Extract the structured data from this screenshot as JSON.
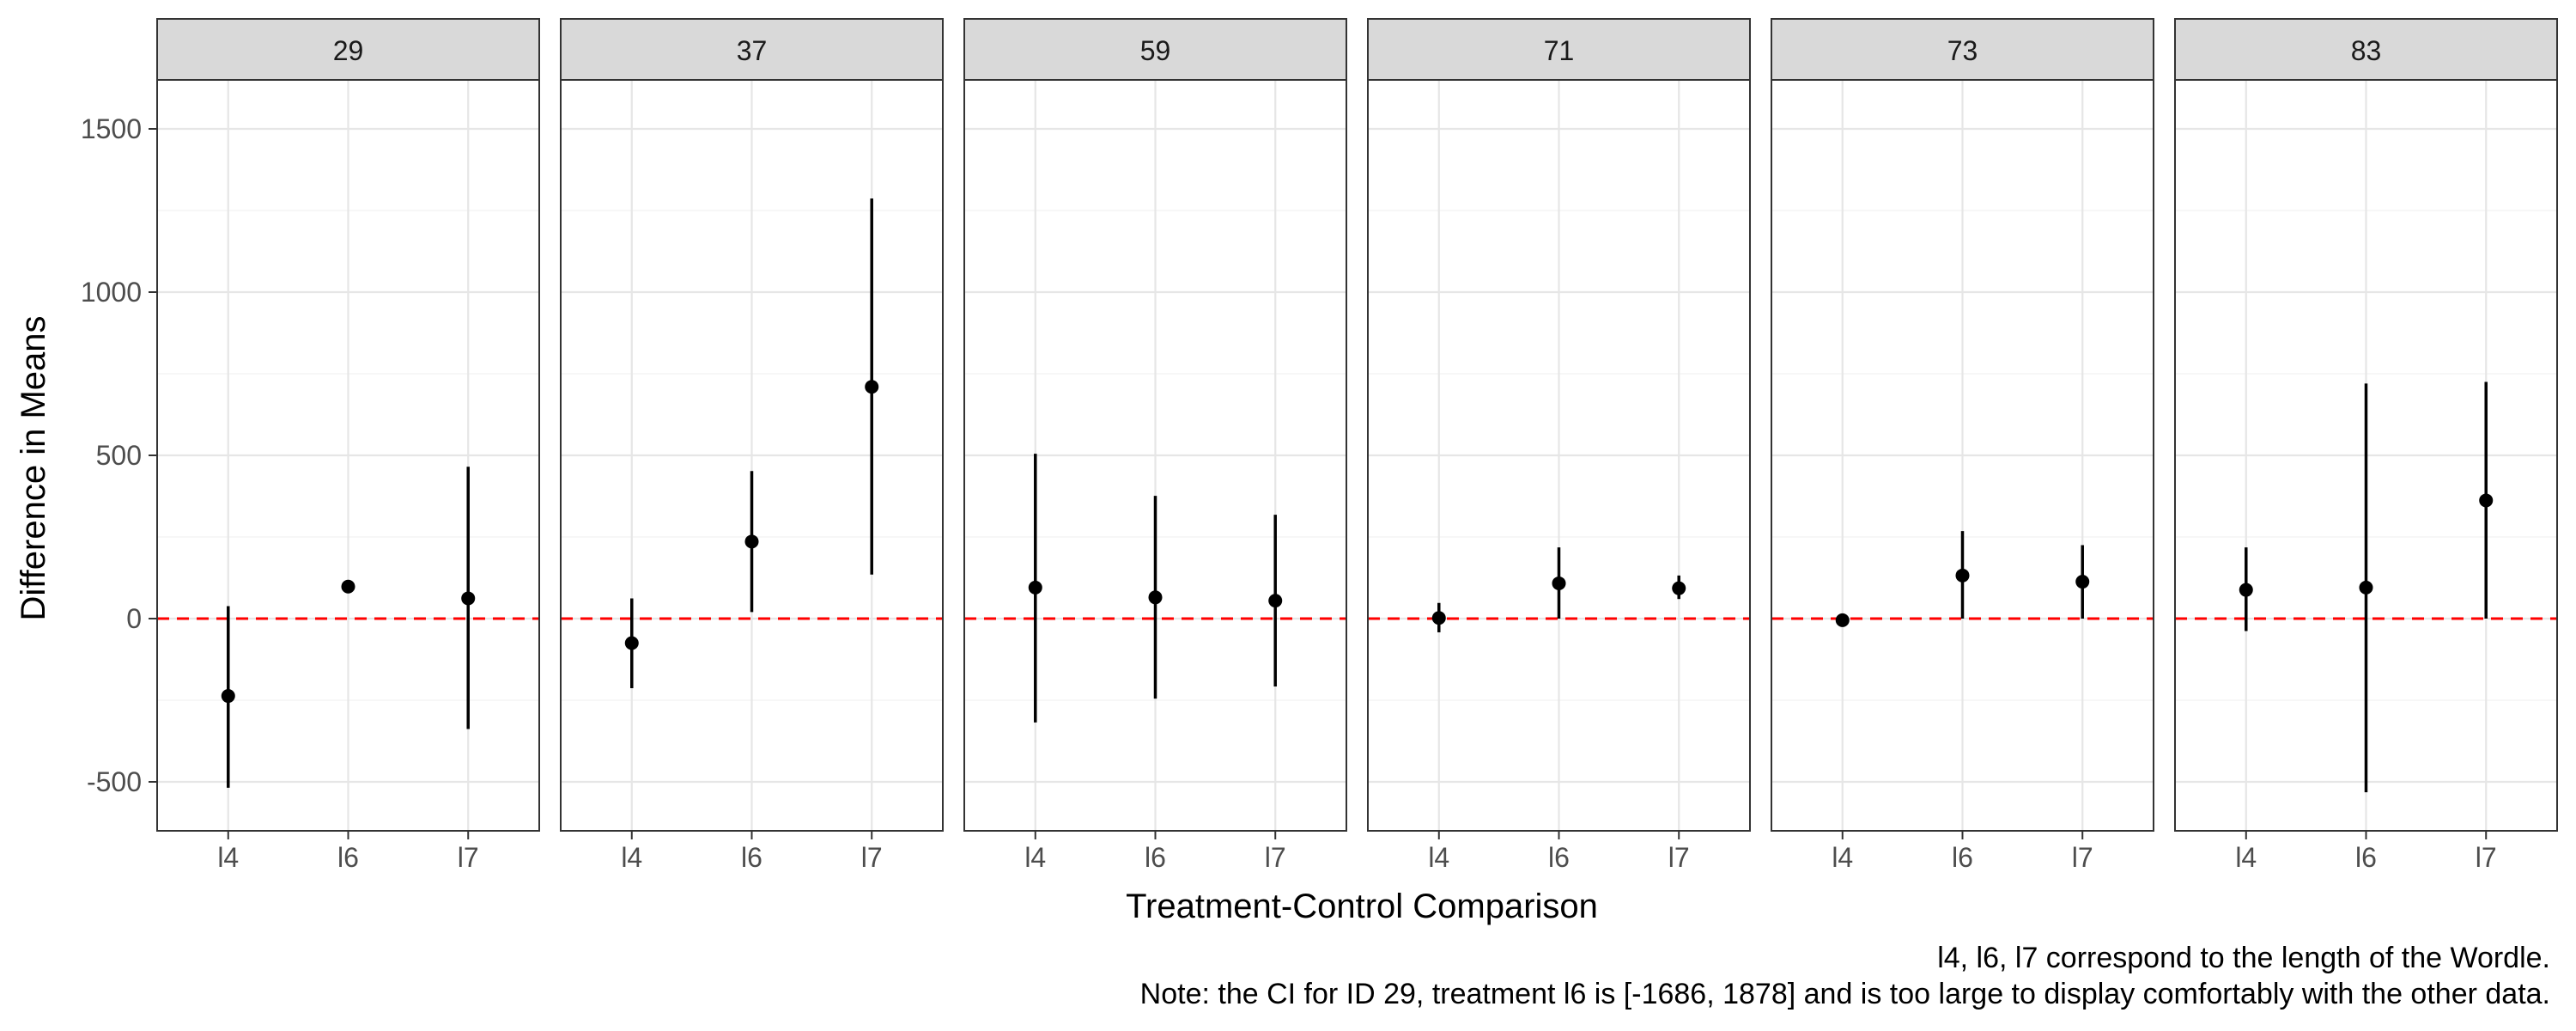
{
  "chart_data": {
    "type": "scatter",
    "facet_by": "ID",
    "facets": [
      "29",
      "37",
      "59",
      "71",
      "73",
      "83"
    ],
    "categories": [
      "l4",
      "l6",
      "l7"
    ],
    "xlabel": "Treatment-Control Comparison",
    "ylabel": "Difference in Means",
    "ylim": [
      -650,
      1650
    ],
    "yticks": [
      -500,
      0,
      500,
      1000,
      1500
    ],
    "grid": true,
    "reference_line": {
      "y": 0,
      "color": "#ff0000",
      "style": "dashed"
    },
    "point_color": "#000000",
    "panels": [
      {
        "id": "29",
        "points": [
          {
            "x": "l4",
            "y": -237,
            "lo": -518,
            "hi": 38
          },
          {
            "x": "l6",
            "y": 98,
            "lo": 98,
            "hi": 98
          },
          {
            "x": "l7",
            "y": 62,
            "lo": -338,
            "hi": 465
          }
        ]
      },
      {
        "id": "37",
        "points": [
          {
            "x": "l4",
            "y": -75,
            "lo": -213,
            "hi": 62
          },
          {
            "x": "l6",
            "y": 236,
            "lo": 20,
            "hi": 452
          },
          {
            "x": "l7",
            "y": 710,
            "lo": 135,
            "hi": 1287
          }
        ]
      },
      {
        "id": "59",
        "points": [
          {
            "x": "l4",
            "y": 95,
            "lo": -318,
            "hi": 505
          },
          {
            "x": "l6",
            "y": 65,
            "lo": -245,
            "hi": 376
          },
          {
            "x": "l7",
            "y": 55,
            "lo": -208,
            "hi": 318
          }
        ]
      },
      {
        "id": "71",
        "points": [
          {
            "x": "l4",
            "y": 2,
            "lo": -42,
            "hi": 48
          },
          {
            "x": "l6",
            "y": 108,
            "lo": 0,
            "hi": 218
          },
          {
            "x": "l7",
            "y": 93,
            "lo": 60,
            "hi": 132
          }
        ]
      },
      {
        "id": "73",
        "points": [
          {
            "x": "l4",
            "y": -5,
            "lo": -18,
            "hi": 8
          },
          {
            "x": "l6",
            "y": 132,
            "lo": 0,
            "hi": 268
          },
          {
            "x": "l7",
            "y": 113,
            "lo": 0,
            "hi": 225
          }
        ]
      },
      {
        "id": "83",
        "points": [
          {
            "x": "l4",
            "y": 88,
            "lo": -38,
            "hi": 218
          },
          {
            "x": "l6",
            "y": 95,
            "lo": -532,
            "hi": 720
          },
          {
            "x": "l7",
            "y": 362,
            "lo": 0,
            "hi": 725
          }
        ]
      }
    ],
    "captions": [
      "l4, l6, l7 correspond to the length of the Wordle.",
      "Note: the CI for ID 29, treatment l6 is [-1686, 1878] and is too large to display comfortably with the other data."
    ]
  }
}
